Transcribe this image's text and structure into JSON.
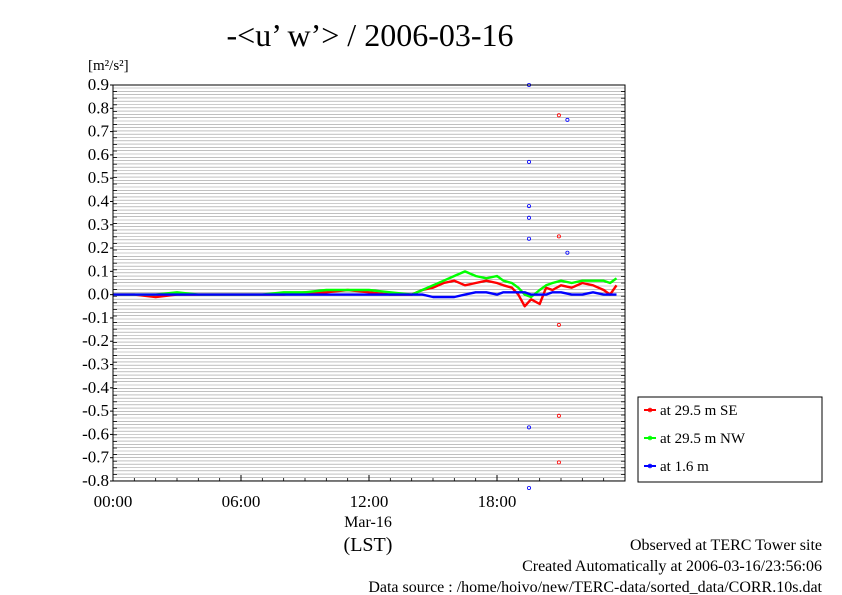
{
  "chart_data": {
    "type": "line",
    "title": "-<u’ w’> / 2006-03-16",
    "ylabel": "[m²/s²]",
    "ylim": [
      -0.8,
      0.9
    ],
    "y_ticks": [
      "0.9",
      "0.8",
      "0.7",
      "0.6",
      "0.5",
      "0.4",
      "0.3",
      "0.2",
      "0.1",
      "0.0",
      "-0.1",
      "-0.2",
      "-0.3",
      "-0.4",
      "-0.5",
      "-0.6",
      "-0.7",
      "-0.8"
    ],
    "xlim_hours": [
      0,
      24
    ],
    "x_ticks": [
      "00:00",
      "06:00",
      "12:00",
      "18:00"
    ],
    "x_date_label": "Mar-16",
    "x_unit_label": "(LST)",
    "grid": true,
    "legend_position": "right, below plot",
    "series": [
      {
        "name": "at 29.5 m SE",
        "color": "#ff0000",
        "x": [
          0,
          1,
          2,
          3,
          4,
          5,
          6,
          7,
          8,
          9,
          10,
          11,
          12,
          13,
          14,
          14.5,
          15,
          15.5,
          16,
          16.5,
          17,
          17.5,
          18,
          18.3,
          18.7,
          19,
          19.3,
          19.6,
          20,
          20.3,
          20.6,
          21,
          21.5,
          22,
          22.5,
          23,
          23.3,
          23.6
        ],
        "y": [
          0.0,
          0.0,
          -0.01,
          0.0,
          0.0,
          0.0,
          0.0,
          0.0,
          0.0,
          0.01,
          0.01,
          0.02,
          0.01,
          0.0,
          0.0,
          0.02,
          0.03,
          0.05,
          0.06,
          0.04,
          0.05,
          0.06,
          0.05,
          0.04,
          0.03,
          0.0,
          -0.05,
          -0.02,
          -0.04,
          0.03,
          0.02,
          0.04,
          0.03,
          0.05,
          0.04,
          0.02,
          0.0,
          0.04
        ]
      },
      {
        "name": "at 29.5 m NW",
        "color": "#00ff00",
        "x": [
          0,
          1,
          2,
          3,
          4,
          5,
          6,
          7,
          8,
          9,
          10,
          11,
          12,
          13,
          14,
          14.5,
          15,
          15.5,
          16,
          16.5,
          17,
          17.5,
          18,
          18.3,
          18.7,
          19,
          19.3,
          19.6,
          20,
          20.3,
          20.6,
          21,
          21.5,
          22,
          22.5,
          23,
          23.3,
          23.6
        ],
        "y": [
          0.0,
          0.0,
          0.0,
          0.01,
          0.0,
          0.0,
          0.0,
          0.0,
          0.01,
          0.01,
          0.02,
          0.02,
          0.02,
          0.01,
          0.0,
          0.02,
          0.04,
          0.06,
          0.08,
          0.1,
          0.08,
          0.07,
          0.08,
          0.06,
          0.05,
          0.03,
          0.0,
          -0.01,
          0.02,
          0.04,
          0.05,
          0.06,
          0.05,
          0.06,
          0.06,
          0.06,
          0.05,
          0.07
        ]
      },
      {
        "name": "at 1.6 m",
        "color": "#0000ff",
        "x": [
          0,
          1,
          2,
          3,
          4,
          5,
          6,
          7,
          8,
          9,
          10,
          11,
          12,
          13,
          14,
          14.5,
          15,
          15.5,
          16,
          16.5,
          17,
          17.5,
          18,
          18.3,
          18.7,
          19,
          19.3,
          19.6,
          20,
          20.3,
          20.6,
          21,
          21.5,
          22,
          22.5,
          23,
          23.3,
          23.6
        ],
        "y": [
          0.0,
          0.0,
          0.0,
          0.0,
          0.0,
          0.0,
          0.0,
          0.0,
          0.0,
          0.0,
          0.0,
          0.0,
          0.0,
          0.0,
          0.0,
          0.0,
          -0.01,
          -0.01,
          -0.01,
          0.0,
          0.01,
          0.01,
          0.0,
          0.01,
          0.01,
          0.01,
          0.01,
          0.0,
          0.0,
          0.0,
          0.01,
          0.01,
          0.0,
          0.0,
          0.01,
          0.0,
          0.0,
          0.0
        ]
      }
    ],
    "scatter_points": [
      {
        "series": "at 1.6 m",
        "x": 19.5,
        "y": 0.9
      },
      {
        "series": "at 29.5 m SE",
        "x": 20.9,
        "y": 0.77
      },
      {
        "series": "at 1.6 m",
        "x": 21.3,
        "y": 0.75
      },
      {
        "series": "at 1.6 m",
        "x": 19.5,
        "y": 0.57
      },
      {
        "series": "at 1.6 m",
        "x": 19.5,
        "y": 0.38
      },
      {
        "series": "at 1.6 m",
        "x": 19.5,
        "y": 0.33
      },
      {
        "series": "at 29.5 m SE",
        "x": 20.9,
        "y": 0.25
      },
      {
        "series": "at 1.6 m",
        "x": 19.5,
        "y": 0.24
      },
      {
        "series": "at 1.6 m",
        "x": 21.3,
        "y": 0.18
      },
      {
        "series": "at 29.5 m SE",
        "x": 20.9,
        "y": -0.13
      },
      {
        "series": "at 29.5 m SE",
        "x": 20.9,
        "y": -0.52
      },
      {
        "series": "at 1.6 m",
        "x": 19.5,
        "y": -0.57
      },
      {
        "series": "at 29.5 m SE",
        "x": 20.9,
        "y": -0.72
      },
      {
        "series": "at 1.6 m",
        "x": 19.5,
        "y": -0.83
      }
    ]
  },
  "footer": {
    "line1": "Observed at TERC Tower site",
    "line2": "Created Automatically at 2006-03-16/23:56:06",
    "line3": "Data source : /home/hoivo/new/TERC-data/sorted_data/CORR.10s.dat"
  }
}
